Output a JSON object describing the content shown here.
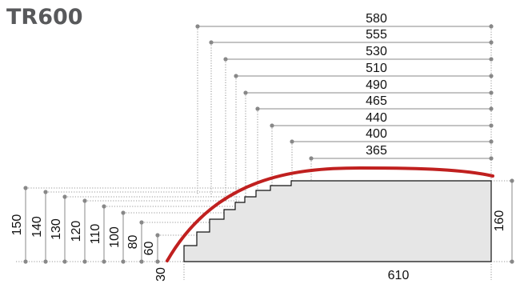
{
  "title": "TR600",
  "width_dims": [
    "580",
    "555",
    "530",
    "510",
    "490",
    "465",
    "440",
    "400",
    "365"
  ],
  "height_dims": [
    "150",
    "140",
    "130",
    "120",
    "110",
    "100",
    "80",
    "60",
    "30"
  ],
  "base_width": "610",
  "total_height": "160",
  "colors": {
    "curve": "#c0201f",
    "profile_fill": "#e6e6e6",
    "title": "#58595b"
  }
}
